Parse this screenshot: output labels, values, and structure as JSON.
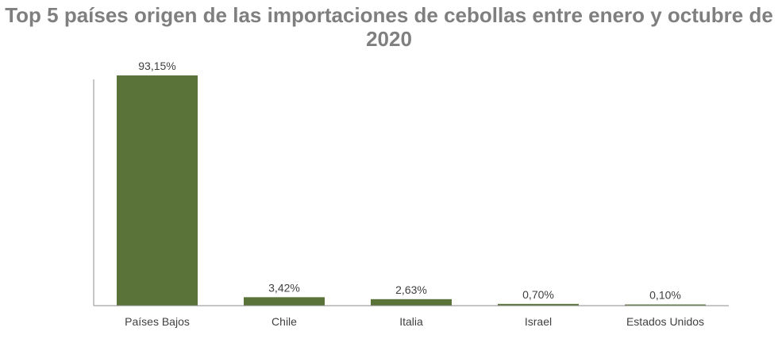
{
  "chart_data": {
    "type": "bar",
    "title": "Top 5 países origen de las importaciones de cebollas entre enero y octubre de 2020",
    "xlabel": "",
    "ylabel": "",
    "categories": [
      "Países Bajos",
      "Chile",
      "Italia",
      "Israel",
      "Estados Unidos"
    ],
    "values": [
      93.15,
      3.42,
      2.63,
      0.7,
      0.1
    ],
    "data_labels": [
      "93,15%",
      "3,42%",
      "2,63%",
      "0,70%",
      "0,10%"
    ],
    "ylim": [
      0,
      100
    ],
    "grid": false,
    "legend": "none",
    "bar_color": "#5a7338",
    "axis_color": "#8c8c8c"
  }
}
